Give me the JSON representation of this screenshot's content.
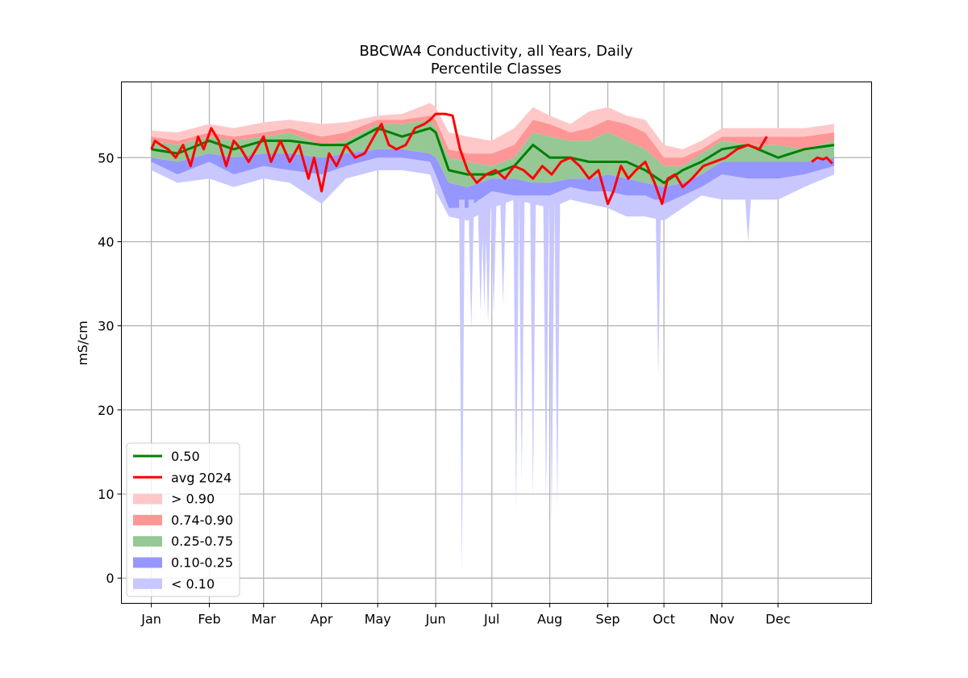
{
  "chart_data": {
    "type": "area",
    "title": "BBCWA4 Conductivity, all Years, Daily",
    "subtitle": "Percentile Classes",
    "xlabel": "",
    "ylabel": "mS/cm",
    "ylim": [
      -3,
      59
    ],
    "xlim": [
      -15,
      386
    ],
    "grid": true,
    "legend_position": "lower-left",
    "x_ticks": [
      {
        "day": 1,
        "label": "Jan"
      },
      {
        "day": 32,
        "label": "Feb"
      },
      {
        "day": 61,
        "label": "Mar"
      },
      {
        "day": 92,
        "label": "Apr"
      },
      {
        "day": 122,
        "label": "May"
      },
      {
        "day": 153,
        "label": "Jun"
      },
      {
        "day": 183,
        "label": "Jul"
      },
      {
        "day": 214,
        "label": "Aug"
      },
      {
        "day": 245,
        "label": "Sep"
      },
      {
        "day": 275,
        "label": "Oct"
      },
      {
        "day": 306,
        "label": "Nov"
      },
      {
        "day": 336,
        "label": "Dec"
      }
    ],
    "y_ticks": [
      0,
      10,
      20,
      30,
      40,
      50
    ],
    "colors": {
      "above_90": "#ffc8c8",
      "p74_90": "#ff9696",
      "p25_75": "#96c896",
      "p10_25": "#9696ff",
      "below_10": "#c8c8ff",
      "median": "#008000",
      "avg2024": "#ff0000"
    },
    "legend": [
      {
        "label": "0.50",
        "kind": "line",
        "color": "#008000"
      },
      {
        "label": "avg 2024",
        "kind": "line",
        "color": "#ff0000"
      },
      {
        "label": "> 0.90",
        "kind": "patch",
        "color": "#ffc8c8"
      },
      {
        "label": "0.74-0.90",
        "kind": "patch",
        "color": "#ff9696"
      },
      {
        "label": "0.25-0.75",
        "kind": "patch",
        "color": "#96c896"
      },
      {
        "label": "0.10-0.25",
        "kind": "patch",
        "color": "#9696ff"
      },
      {
        "label": "< 0.10",
        "kind": "patch",
        "color": "#c8c8ff"
      }
    ],
    "day": [
      1,
      15,
      32,
      45,
      61,
      75,
      92,
      105,
      122,
      135,
      150,
      153,
      160,
      170,
      183,
      195,
      205,
      214,
      225,
      235,
      245,
      255,
      265,
      275,
      285,
      295,
      306,
      320,
      336,
      350,
      366
    ],
    "max": [
      53.2,
      53.0,
      54.0,
      53.5,
      54.2,
      54.5,
      54.0,
      54.2,
      55.0,
      55.2,
      56.5,
      56.0,
      53.0,
      52.5,
      52.0,
      53.5,
      56.0,
      55.0,
      54.0,
      55.5,
      56.0,
      55.0,
      54.5,
      51.5,
      51.0,
      52.0,
      53.5,
      53.5,
      53.5,
      53.5,
      54.0
    ],
    "p90": [
      52.5,
      52.0,
      53.0,
      52.5,
      53.0,
      53.5,
      52.5,
      53.0,
      54.5,
      54.5,
      55.0,
      54.5,
      51.0,
      50.5,
      50.5,
      51.5,
      54.5,
      54.0,
      53.0,
      53.5,
      54.5,
      54.0,
      53.0,
      50.0,
      50.0,
      51.0,
      52.5,
      52.5,
      52.5,
      52.5,
      53.0
    ],
    "p75": [
      52.0,
      51.5,
      52.5,
      52.0,
      52.5,
      53.0,
      51.5,
      52.0,
      54.0,
      54.0,
      54.5,
      53.5,
      50.0,
      49.5,
      49.0,
      50.0,
      53.0,
      52.5,
      52.0,
      52.0,
      53.0,
      52.0,
      51.0,
      49.0,
      49.0,
      50.5,
      52.0,
      51.5,
      51.5,
      51.0,
      52.0
    ],
    "p25": [
      50.0,
      49.5,
      50.5,
      50.0,
      50.5,
      50.5,
      50.0,
      50.5,
      51.0,
      51.0,
      50.5,
      50.0,
      47.0,
      46.5,
      47.5,
      47.5,
      47.0,
      47.0,
      47.5,
      47.5,
      48.0,
      47.5,
      47.0,
      46.5,
      47.0,
      48.0,
      49.5,
      49.5,
      49.5,
      49.5,
      50.0
    ],
    "p10": [
      49.5,
      48.0,
      49.5,
      48.0,
      49.0,
      48.5,
      48.0,
      49.0,
      50.0,
      50.0,
      49.5,
      48.0,
      44.0,
      44.0,
      46.0,
      45.5,
      45.5,
      45.5,
      46.5,
      46.0,
      46.0,
      45.5,
      45.5,
      44.5,
      45.5,
      46.5,
      48.0,
      47.5,
      47.5,
      48.0,
      49.0
    ],
    "min": [
      48.5,
      47.0,
      47.5,
      46.5,
      47.5,
      47.0,
      44.5,
      47.5,
      48.5,
      48.5,
      48.0,
      46.0,
      43.0,
      42.5,
      44.0,
      45.0,
      44.5,
      44.0,
      45.0,
      44.5,
      44.0,
      43.0,
      43.0,
      42.5,
      44.0,
      45.5,
      45.0,
      45.0,
      45.0,
      46.5,
      48.0
    ],
    "median": [
      51.0,
      50.5,
      52.0,
      51.0,
      52.0,
      52.0,
      51.5,
      51.5,
      53.5,
      52.5,
      53.5,
      53.0,
      48.5,
      48.0,
      48.0,
      49.0,
      51.5,
      50.0,
      50.0,
      49.5,
      49.5,
      49.5,
      48.5,
      47.0,
      48.5,
      49.5,
      51.0,
      51.5,
      50.0,
      51.0,
      51.5
    ],
    "spikes": [
      {
        "day": 167,
        "min": 0.5
      },
      {
        "day": 172,
        "min": 29.5
      },
      {
        "day": 177,
        "min": 31.5
      },
      {
        "day": 179,
        "min": 32.0
      },
      {
        "day": 181,
        "min": 30.0
      },
      {
        "day": 184,
        "min": 31.5
      },
      {
        "day": 189,
        "min": 32.5
      },
      {
        "day": 196,
        "min": 8.0
      },
      {
        "day": 199,
        "min": 11.5
      },
      {
        "day": 205,
        "min": 9.5
      },
      {
        "day": 212,
        "min": 8.5
      },
      {
        "day": 215,
        "min": 7.0
      },
      {
        "day": 218,
        "min": 8.0
      },
      {
        "day": 272,
        "min": 24.0
      },
      {
        "day": 320,
        "min": 40.0
      }
    ],
    "avg2024": {
      "segments": [
        {
          "day": [
            1,
            3,
            6,
            10,
            14,
            18,
            22,
            26,
            29,
            33,
            37,
            41,
            45,
            49,
            53,
            57,
            61,
            65,
            70,
            75,
            80,
            85,
            88,
            92,
            96,
            100,
            105,
            110,
            115,
            120,
            124,
            128,
            132,
            137,
            142,
            147,
            150,
            153,
            158,
            162,
            166,
            170,
            175,
            180,
            185,
            190,
            195,
            200,
            205,
            210,
            215,
            220,
            225,
            230,
            235,
            240,
            245,
            248,
            252,
            256,
            260,
            265,
            270,
            274,
            277,
            281,
            285,
            290,
            296,
            302,
            308,
            314,
            320,
            326,
            330
          ],
          "value": [
            51.0,
            52.0,
            51.5,
            51.0,
            50.0,
            51.5,
            49.0,
            52.5,
            51.0,
            53.5,
            52.0,
            49.0,
            52.0,
            51.0,
            49.5,
            51.0,
            52.5,
            49.5,
            52.0,
            49.5,
            51.5,
            47.5,
            50.0,
            46.0,
            50.5,
            49.0,
            51.5,
            50.0,
            50.5,
            52.5,
            54.0,
            51.5,
            51.0,
            51.5,
            53.5,
            54.0,
            54.5,
            55.2,
            55.2,
            55.0,
            51.0,
            48.5,
            47.0,
            48.0,
            48.5,
            47.5,
            49.0,
            48.5,
            47.5,
            49.0,
            48.0,
            49.5,
            50.0,
            49.0,
            47.5,
            48.5,
            44.5,
            46.0,
            49.0,
            47.5,
            48.5,
            49.5,
            47.0,
            44.5,
            47.5,
            48.0,
            46.5,
            47.5,
            49.0,
            49.5,
            50.0,
            51.0,
            51.5,
            51.0,
            52.5
          ]
        },
        {
          "day": [
            354,
            357,
            360,
            362,
            365
          ],
          "value": [
            49.5,
            50.0,
            49.8,
            50.0,
            49.3
          ]
        }
      ]
    }
  }
}
